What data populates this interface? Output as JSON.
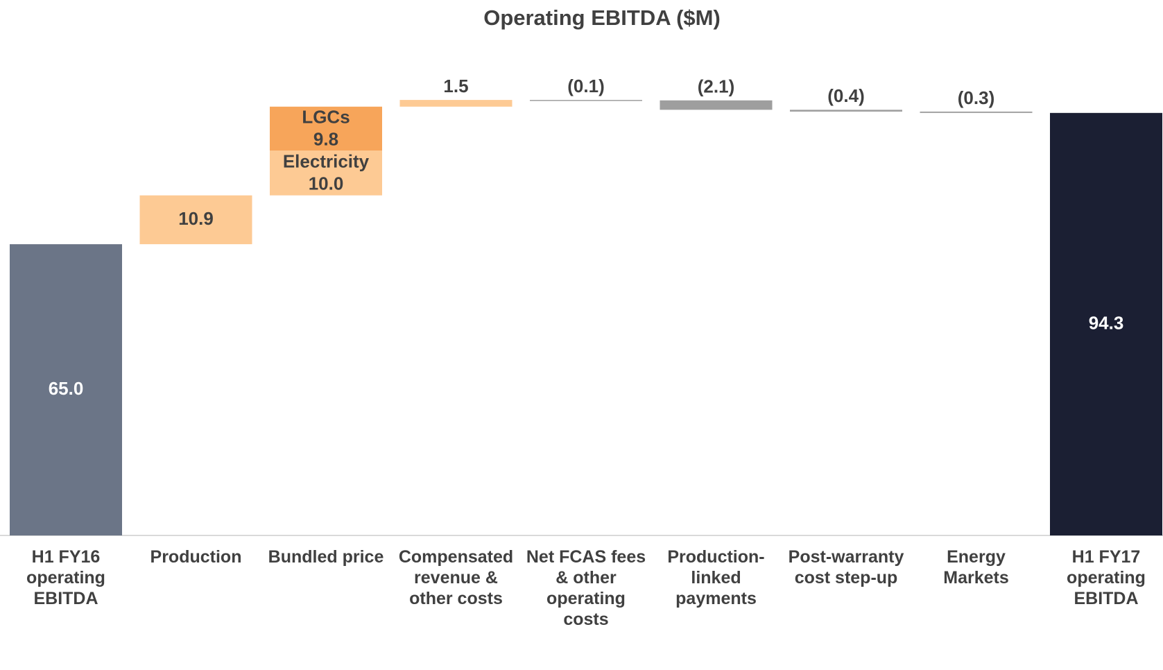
{
  "chart_data": {
    "type": "waterfall",
    "title": "Operating EBITDA ($M)",
    "categories": [
      "H1 FY16 operating EBITDA",
      "Production",
      "Bundled price",
      "Compensated revenue & other costs",
      "Net FCAS fees & other operating costs",
      "Production-linked payments",
      "Post-warranty cost step-up",
      "Energy Markets",
      "H1 FY17 operating EBITDA"
    ],
    "measure": [
      "absolute",
      "relative",
      "relative",
      "relative",
      "relative",
      "relative",
      "relative",
      "relative",
      "absolute"
    ],
    "values": [
      65.0,
      10.9,
      null,
      1.5,
      -0.1,
      -2.1,
      -0.4,
      -0.3,
      94.3
    ],
    "value_labels": [
      "65.0",
      "10.9",
      null,
      "1.5",
      "(0.1)",
      "(2.1)",
      "(0.4)",
      "(0.3)",
      "94.3"
    ],
    "colors": [
      "#6b7587",
      "#fdca94",
      null,
      "#fdca94",
      "#9e9e9e",
      "#9e9e9e",
      "#9e9e9e",
      "#9e9e9e",
      "#1b1f33"
    ],
    "segments": {
      "2": [
        {
          "name": "Electricity",
          "value": 10.0,
          "label": "10.0",
          "color": "#fdca94"
        },
        {
          "name": "LGCs",
          "value": 9.8,
          "label": "9.8",
          "color": "#f7a55a"
        }
      ]
    },
    "ylim": [
      0,
      100
    ]
  }
}
